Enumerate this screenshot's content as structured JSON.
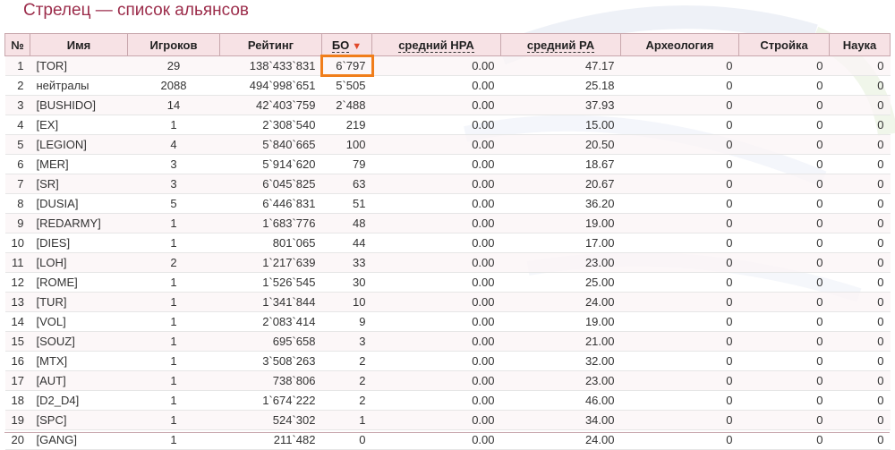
{
  "page": {
    "title": "Стрелец — список альянсов"
  },
  "table": {
    "headers": {
      "num": "№",
      "name": "Имя",
      "players": "Игроков",
      "rating": "Рейтинг",
      "bo": "БО",
      "avg_hra": "средний HPA",
      "avg_ra": "средний PA",
      "archaeology": "Археология",
      "construction": "Стройка",
      "science": "Наука"
    },
    "sort_arrow": "▼",
    "rows": [
      {
        "num": "1",
        "name": "[TOR]",
        "players": "29",
        "rating": "138`433`831",
        "bo": "6`797",
        "hra": "0.00",
        "ra": "47.17",
        "arch": "0",
        "build": "0",
        "sci": "0"
      },
      {
        "num": "2",
        "name": "нейтралы",
        "players": "2088",
        "rating": "494`998`651",
        "bo": "5`505",
        "hra": "0.00",
        "ra": "25.18",
        "arch": "0",
        "build": "0",
        "sci": "0"
      },
      {
        "num": "3",
        "name": "[BUSHIDO]",
        "players": "14",
        "rating": "42`403`759",
        "bo": "2`488",
        "hra": "0.00",
        "ra": "37.93",
        "arch": "0",
        "build": "0",
        "sci": "0"
      },
      {
        "num": "4",
        "name": "[EX]",
        "players": "1",
        "rating": "2`308`540",
        "bo": "219",
        "hra": "0.00",
        "ra": "15.00",
        "arch": "0",
        "build": "0",
        "sci": "0"
      },
      {
        "num": "5",
        "name": "[LEGION]",
        "players": "4",
        "rating": "5`840`665",
        "bo": "100",
        "hra": "0.00",
        "ra": "20.50",
        "arch": "0",
        "build": "0",
        "sci": "0"
      },
      {
        "num": "6",
        "name": "[MER]",
        "players": "3",
        "rating": "5`914`620",
        "bo": "79",
        "hra": "0.00",
        "ra": "18.67",
        "arch": "0",
        "build": "0",
        "sci": "0"
      },
      {
        "num": "7",
        "name": "[SR]",
        "players": "3",
        "rating": "6`045`825",
        "bo": "63",
        "hra": "0.00",
        "ra": "20.67",
        "arch": "0",
        "build": "0",
        "sci": "0"
      },
      {
        "num": "8",
        "name": "[DUSIA]",
        "players": "5",
        "rating": "6`446`831",
        "bo": "51",
        "hra": "0.00",
        "ra": "36.20",
        "arch": "0",
        "build": "0",
        "sci": "0"
      },
      {
        "num": "9",
        "name": "[REDARMY]",
        "players": "1",
        "rating": "1`683`776",
        "bo": "48",
        "hra": "0.00",
        "ra": "19.00",
        "arch": "0",
        "build": "0",
        "sci": "0"
      },
      {
        "num": "10",
        "name": "[DIES]",
        "players": "1",
        "rating": "801`065",
        "bo": "44",
        "hra": "0.00",
        "ra": "17.00",
        "arch": "0",
        "build": "0",
        "sci": "0"
      },
      {
        "num": "11",
        "name": "[LOH]",
        "players": "2",
        "rating": "1`217`639",
        "bo": "33",
        "hra": "0.00",
        "ra": "23.00",
        "arch": "0",
        "build": "0",
        "sci": "0"
      },
      {
        "num": "12",
        "name": "[ROME]",
        "players": "1",
        "rating": "1`526`545",
        "bo": "30",
        "hra": "0.00",
        "ra": "25.00",
        "arch": "0",
        "build": "0",
        "sci": "0"
      },
      {
        "num": "13",
        "name": "[TUR]",
        "players": "1",
        "rating": "1`341`844",
        "bo": "10",
        "hra": "0.00",
        "ra": "24.00",
        "arch": "0",
        "build": "0",
        "sci": "0"
      },
      {
        "num": "14",
        "name": "[VOL]",
        "players": "1",
        "rating": "2`083`414",
        "bo": "9",
        "hra": "0.00",
        "ra": "19.00",
        "arch": "0",
        "build": "0",
        "sci": "0"
      },
      {
        "num": "15",
        "name": "[SOUZ]",
        "players": "1",
        "rating": "695`658",
        "bo": "3",
        "hra": "0.00",
        "ra": "21.00",
        "arch": "0",
        "build": "0",
        "sci": "0"
      },
      {
        "num": "16",
        "name": "[MTX]",
        "players": "1",
        "rating": "3`508`263",
        "bo": "2",
        "hra": "0.00",
        "ra": "32.00",
        "arch": "0",
        "build": "0",
        "sci": "0"
      },
      {
        "num": "17",
        "name": "[AUT]",
        "players": "1",
        "rating": "738`806",
        "bo": "2",
        "hra": "0.00",
        "ra": "23.00",
        "arch": "0",
        "build": "0",
        "sci": "0"
      },
      {
        "num": "18",
        "name": "[D2_D4]",
        "players": "1",
        "rating": "1`674`222",
        "bo": "2",
        "hra": "0.00",
        "ra": "46.00",
        "arch": "0",
        "build": "0",
        "sci": "0"
      },
      {
        "num": "19",
        "name": "[SPC]",
        "players": "1",
        "rating": "524`302",
        "bo": "1",
        "hra": "0.00",
        "ra": "34.00",
        "arch": "0",
        "build": "0",
        "sci": "0"
      },
      {
        "num": "20",
        "name": "[GANG]",
        "players": "1",
        "rating": "211`482",
        "bo": "0",
        "hra": "0.00",
        "ra": "24.00",
        "arch": "0",
        "build": "0",
        "sci": "0"
      }
    ]
  },
  "colors": {
    "title": "#9c2d4b",
    "header_bg": "#f7e2e5",
    "link": "#8a2340",
    "highlight": "#f07d1a"
  }
}
